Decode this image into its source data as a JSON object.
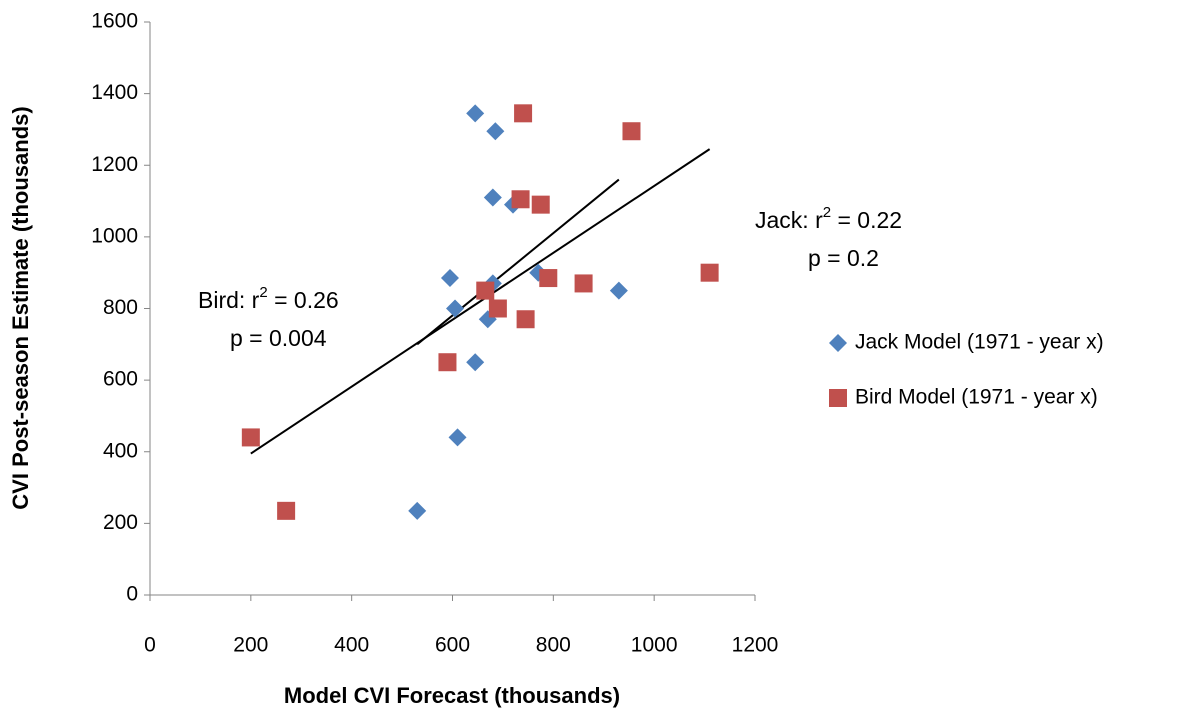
{
  "chart_data": {
    "type": "scatter",
    "x_label": "Model CVI Forecast (thousands)",
    "y_label": "CVI Post-season Estimate (thousands)",
    "xlim": [
      0,
      1200
    ],
    "xticks": [
      0,
      200,
      400,
      600,
      800,
      1000,
      1200
    ],
    "ylim": [
      0,
      1600
    ],
    "yticks": [
      0,
      200,
      400,
      600,
      800,
      1000,
      1200,
      1400,
      1600
    ],
    "grid": false,
    "legend": "right",
    "series": [
      {
        "name": "Jack Model (1971 - year x)",
        "color": "#4F81BD",
        "marker": "diamond",
        "x": [
          530,
          610,
          645,
          605,
          595,
          645,
          685,
          680,
          720,
          680,
          670,
          770,
          930
        ],
        "values": [
          235,
          440,
          650,
          800,
          885,
          1345,
          1295,
          1110,
          1090,
          870,
          770,
          900,
          850
        ]
      },
      {
        "name": "Bird Model (1971 - year x)",
        "color": "#C0504D",
        "marker": "square",
        "x": [
          200,
          270,
          590,
          665,
          690,
          745,
          740,
          735,
          775,
          790,
          860,
          955,
          1110
        ],
        "values": [
          440,
          235,
          650,
          850,
          800,
          770,
          1345,
          1105,
          1090,
          885,
          870,
          1295,
          900
        ]
      }
    ],
    "trendlines": [
      {
        "x": [
          530,
          930
        ],
        "values": [
          700,
          1160
        ]
      },
      {
        "x": [
          200,
          1110
        ],
        "values": [
          395,
          1245
        ]
      }
    ],
    "annotations": [
      {
        "line1": [
          "Jack:  r",
          "2",
          " = 0.22"
        ],
        "line2": "p = 0.2"
      },
      {
        "line1": [
          "Bird:  r",
          "2",
          " = 0.26"
        ],
        "line2": "p = 0.004"
      }
    ]
  }
}
